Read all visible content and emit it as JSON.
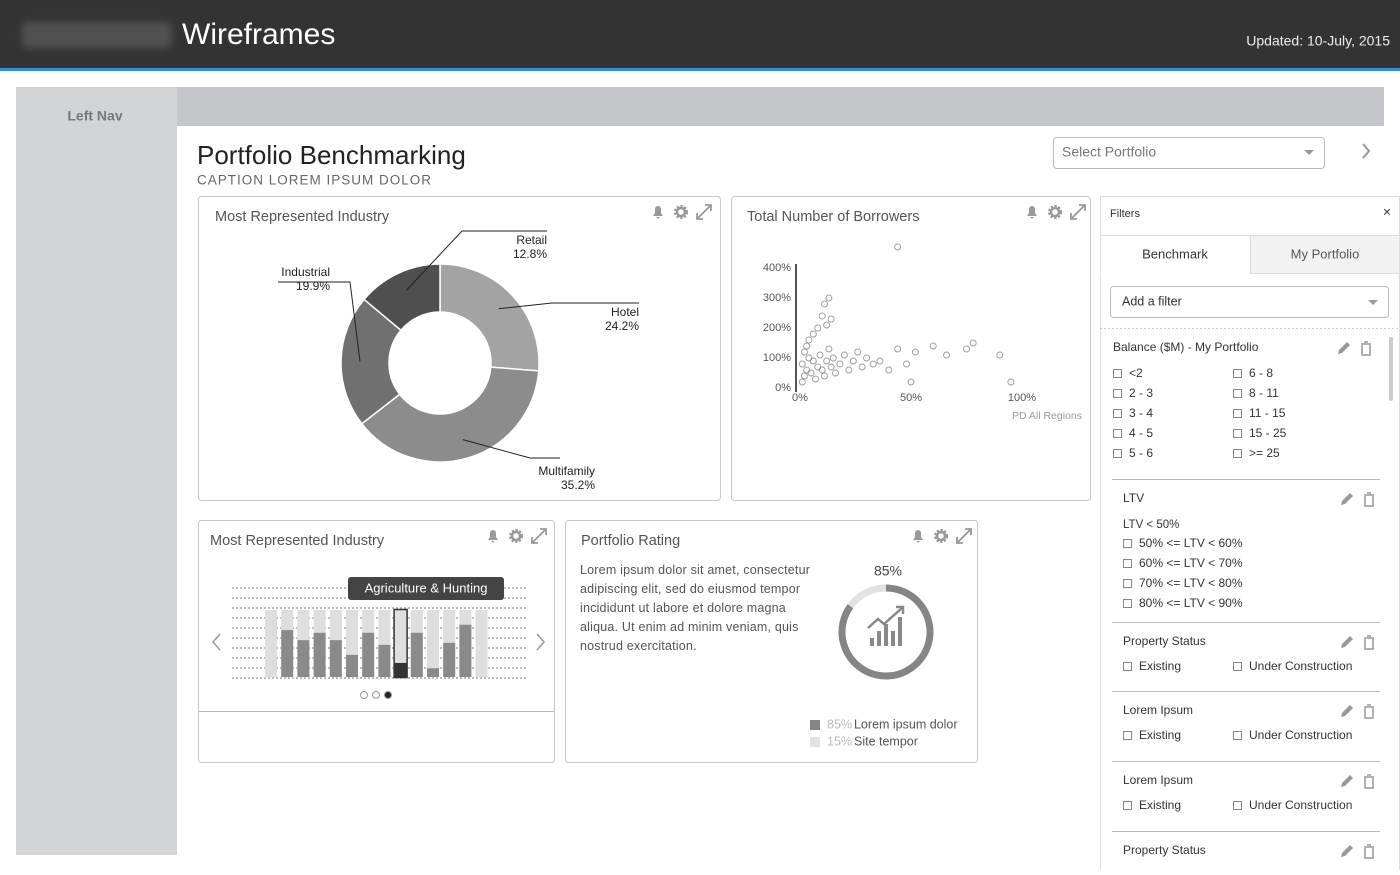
{
  "header": {
    "brand": "Wireframes",
    "updated": "Updated: 10-July, 2015"
  },
  "nav": {
    "label": "Left Nav"
  },
  "page": {
    "title": "Portfolio Benchmarking",
    "caption": "CAPTION LOREM IPSUM DOLOR",
    "select": "Select Portfolio"
  },
  "chart_data": [
    {
      "type": "pie",
      "title": "Most Represented Industry",
      "categories": [
        "Hotel",
        "Multifamily",
        "Industrial",
        "Retail"
      ],
      "values": [
        24.2,
        35.2,
        19.9,
        12.8
      ],
      "value_labels": [
        "24.2%",
        "35.2%",
        "19.9%",
        "12.8%"
      ],
      "colors": [
        "#a3a3a3",
        "#8c8c8c",
        "#707070",
        "#4f4f4f"
      ]
    },
    {
      "type": "scatter",
      "title": "Total Number of Borrowers",
      "xlabel": "PD All Regions",
      "color": "#777777",
      "x": [
        1,
        2,
        3,
        1,
        4,
        2,
        5,
        6,
        3,
        7,
        8,
        4,
        9,
        10,
        6,
        11,
        12,
        8,
        13,
        14,
        10,
        15,
        16,
        12,
        18,
        20,
        22,
        24,
        14,
        26,
        28,
        30,
        33,
        36,
        40,
        44,
        48,
        50,
        52,
        60,
        66,
        75,
        78,
        90,
        95,
        44,
        11,
        13
      ],
      "values": [
        20,
        40,
        60,
        80,
        100,
        120,
        50,
        90,
        140,
        30,
        70,
        160,
        110,
        60,
        180,
        40,
        90,
        200,
        130,
        70,
        240,
        100,
        50,
        210,
        80,
        110,
        60,
        90,
        230,
        120,
        70,
        100,
        80,
        90,
        60,
        130,
        80,
        20,
        120,
        140,
        110,
        130,
        150,
        110,
        20,
        470,
        280,
        300
      ],
      "xlim": [
        0,
        100
      ],
      "xticks": [
        {
          "value": 0,
          "label": "0%"
        },
        {
          "value": 50,
          "label": "50%"
        },
        {
          "value": 100,
          "label": "100%"
        }
      ],
      "ylim": [
        0,
        480
      ],
      "yticks": [
        {
          "value": 0,
          "label": "0%"
        },
        {
          "value": 100,
          "label": "100%"
        },
        {
          "value": 200,
          "label": "200%"
        },
        {
          "value": 300,
          "label": "300%"
        },
        {
          "value": 400,
          "label": "400%"
        }
      ]
    },
    {
      "type": "bar",
      "title": "Most Represented Industry",
      "categories": [
        null,
        null,
        null,
        null,
        null,
        null,
        null,
        null,
        "Agriculture & Hunting",
        null,
        null,
        null,
        null,
        null
      ],
      "values": [
        0,
        70,
        55,
        66,
        55,
        33,
        66,
        48,
        21,
        66,
        13,
        51,
        78,
        0
      ],
      "ylim": [
        0,
        100
      ],
      "color": "#8a8a8a",
      "selected": 8
    },
    {
      "type": "gauge",
      "title": "Portfolio Rating",
      "text": "Lorem ipsum dolor sit amet, consectetur adipiscing elit, sed do eiusmod tempor incididunt ut labore et dolore magna aliqua. Ut enim ad minim veniam, quis nostrud exercitation.",
      "categories": [
        "Lorem ipsum dolor",
        "Site tempor"
      ],
      "values": [
        85,
        15
      ],
      "value_labels": [
        "85%",
        "15%"
      ],
      "colors": [
        "#858585",
        "#e2e2e2"
      ]
    }
  ],
  "filters": {
    "title": "Filters",
    "close": "×",
    "tabs": [
      "Benchmark",
      "My Portfolio"
    ],
    "add": "Add a filter",
    "groups": [
      {
        "title": "Balance ($M) - My Portfolio",
        "options": [
          "<2",
          "2 - 3",
          "3 - 4",
          "4 - 5",
          "5 - 6",
          "6 - 8",
          "8 - 11",
          "11 - 15",
          "15 - 25",
          ">= 25"
        ]
      },
      {
        "title": "LTV",
        "note": "LTV < 50%",
        "options": [
          "50% <= LTV < 60%",
          "60% <= LTV < 70%",
          "70% <= LTV < 80%",
          "80% <= LTV < 90%"
        ]
      },
      {
        "title": "Property Status",
        "options": [
          "Existing",
          "Under Construction"
        ]
      },
      {
        "title": "Lorem Ipsum",
        "options": [
          "Existing",
          "Under Construction"
        ]
      },
      {
        "title": "Lorem Ipsum",
        "options": [
          "Existing",
          "Under Construction"
        ]
      },
      {
        "title": "Property Status",
        "options": []
      }
    ]
  }
}
